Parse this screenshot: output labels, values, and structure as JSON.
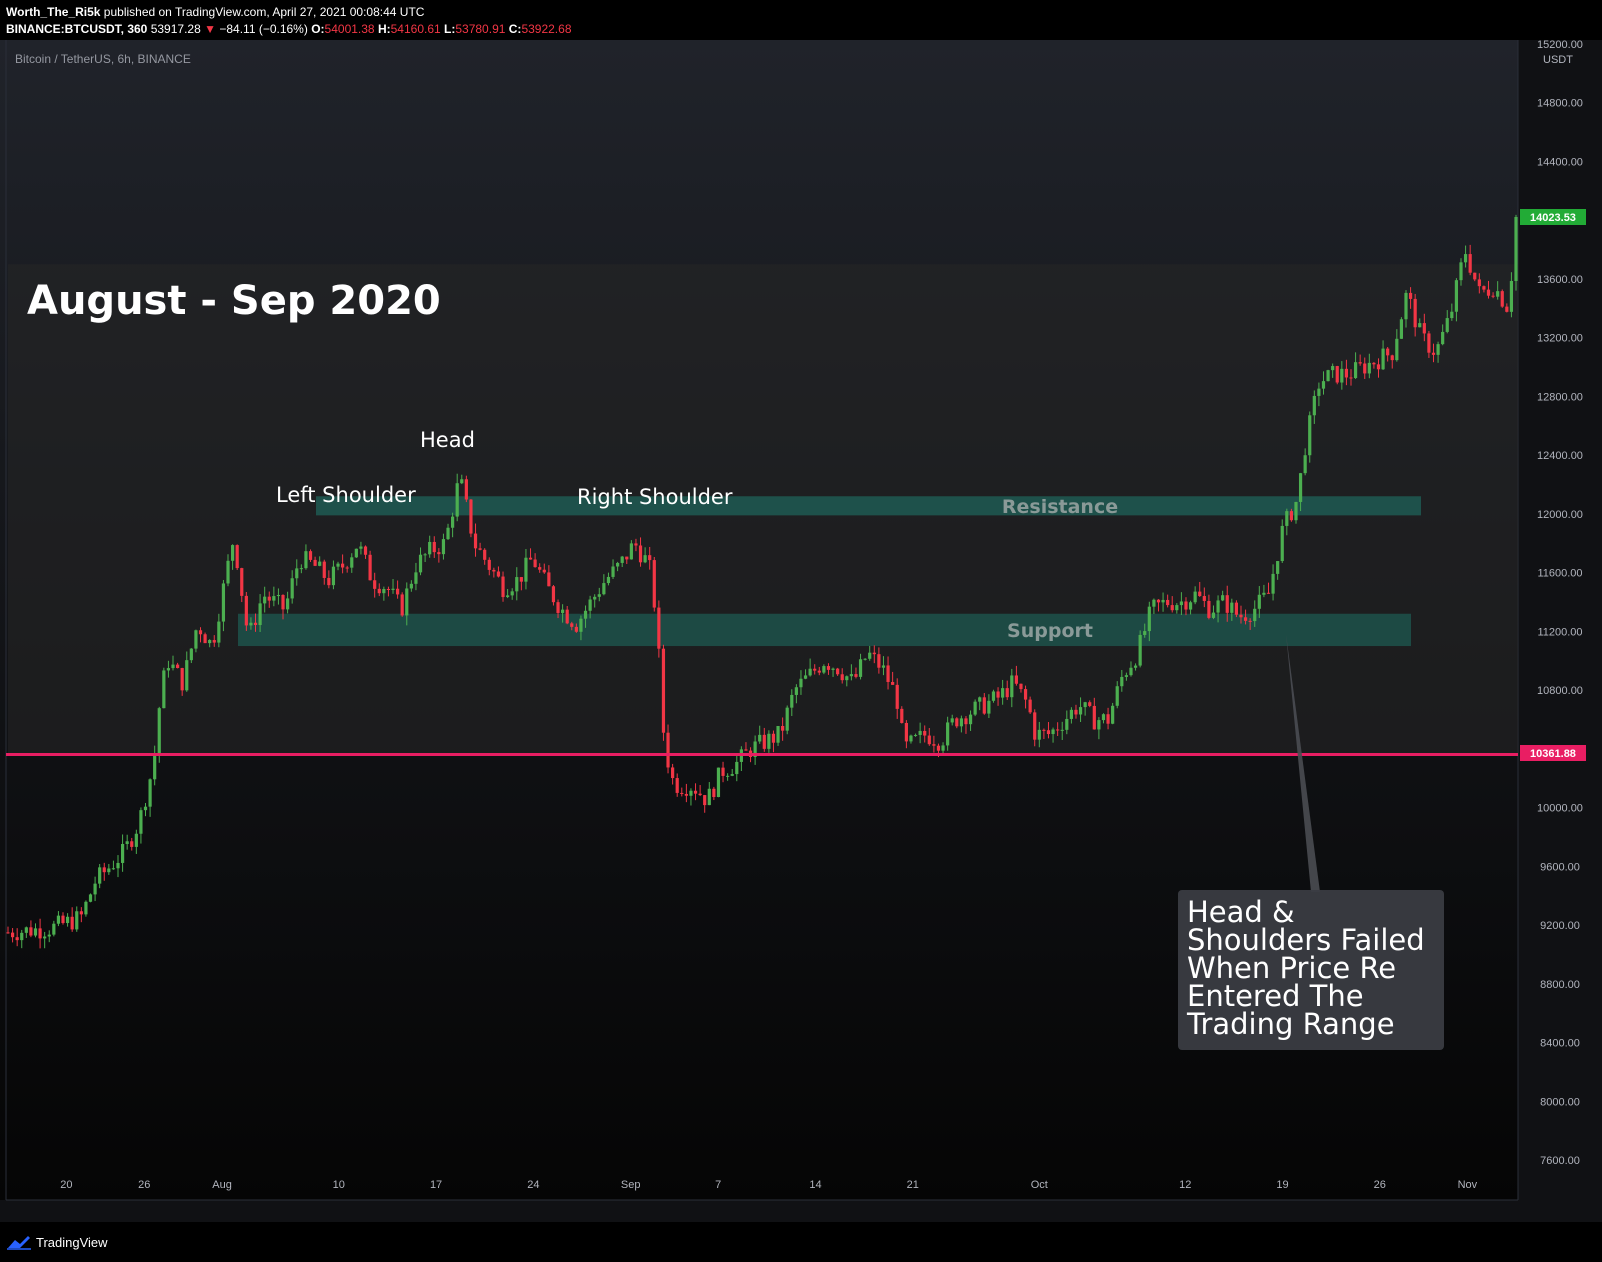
{
  "header": {
    "author": "Worth_The_Ri5k",
    "published_text": " published on TradingView.com, April 27, 2021 00:08:44 UTC",
    "symbol_line": "BINANCE:BTCUSDT, 360",
    "last": "53917.28",
    "change": "−84.11 (−0.16%)",
    "o_label": "O:",
    "o": "54001.38",
    "h_label": "H:",
    "h": "54160.61",
    "l_label": "L:",
    "l": "53780.91",
    "c_label": "C:",
    "c": "53922.68"
  },
  "chart_header": "Bitcoin / TetherUS, 6h, BINANCE",
  "footer": {
    "brand": "TradingView"
  },
  "colors": {
    "up": "#26a69a",
    "down": "#f23645",
    "candle_up": "#4caf50",
    "candle_down": "#f23645",
    "zone": "#1e5a52",
    "level_line": "#e91e63",
    "last_price_bg": "#22ab36",
    "bg_top": "#1e2128",
    "bg_bottom": "#050505"
  },
  "chart_data": {
    "type": "candlestick",
    "title": "August - Sep 2020",
    "price_unit": "USDT",
    "ylim": [
      7600,
      15200
    ],
    "y_ticks": [
      "15200.00",
      "14800.00",
      "14400.00",
      "14000.00",
      "13600.00",
      "13200.00",
      "12800.00",
      "12400.00",
      "12000.00",
      "11600.00",
      "11200.00",
      "10800.00",
      "10400.00",
      "10000.00",
      "9600.00",
      "9200.00",
      "8800.00",
      "8400.00",
      "8000.00",
      "7600.00"
    ],
    "x_ticks": [
      "20",
      "26",
      "Aug",
      "10",
      "17",
      "24",
      "Sep",
      "7",
      "14",
      "21",
      "Oct",
      "12",
      "19",
      "26",
      "Nov"
    ],
    "price_path": [
      [
        0,
        9150
      ],
      [
        6,
        9180
      ],
      [
        10,
        9250
      ],
      [
        12,
        9500
      ],
      [
        16,
        9700
      ],
      [
        18,
        9900
      ],
      [
        20,
        10300
      ],
      [
        21,
        10800
      ],
      [
        22,
        11000
      ],
      [
        24,
        10850
      ],
      [
        26,
        11250
      ],
      [
        28,
        11100
      ],
      [
        30,
        11600
      ],
      [
        31,
        11850
      ],
      [
        33,
        11150
      ],
      [
        35,
        11450
      ],
      [
        38,
        11350
      ],
      [
        40,
        11700
      ],
      [
        42,
        11650
      ],
      [
        44,
        11550
      ],
      [
        46,
        11650
      ],
      [
        48,
        11800
      ],
      [
        50,
        11550
      ],
      [
        52,
        11500
      ],
      [
        54,
        11350
      ],
      [
        56,
        11650
      ],
      [
        58,
        11750
      ],
      [
        60,
        11800
      ],
      [
        62,
        12250
      ],
      [
        64,
        11800
      ],
      [
        66,
        11650
      ],
      [
        68,
        11500
      ],
      [
        70,
        11550
      ],
      [
        72,
        11700
      ],
      [
        74,
        11500
      ],
      [
        76,
        11350
      ],
      [
        78,
        11250
      ],
      [
        80,
        11400
      ],
      [
        82,
        11550
      ],
      [
        84,
        11650
      ],
      [
        86,
        11800
      ],
      [
        88,
        11650
      ],
      [
        89,
        11300
      ],
      [
        90,
        10500
      ],
      [
        91,
        10200
      ],
      [
        92,
        10150
      ],
      [
        94,
        10150
      ],
      [
        96,
        10050
      ],
      [
        98,
        10250
      ],
      [
        100,
        10300
      ],
      [
        102,
        10400
      ],
      [
        104,
        10450
      ],
      [
        106,
        10500
      ],
      [
        108,
        10800
      ],
      [
        110,
        10900
      ],
      [
        112,
        11000
      ],
      [
        114,
        10950
      ],
      [
        116,
        10850
      ],
      [
        118,
        11050
      ],
      [
        120,
        10950
      ],
      [
        122,
        10750
      ],
      [
        123,
        10400
      ],
      [
        126,
        10500
      ],
      [
        128,
        10450
      ],
      [
        130,
        10600
      ],
      [
        132,
        10650
      ],
      [
        134,
        10700
      ],
      [
        136,
        10750
      ],
      [
        138,
        10850
      ],
      [
        140,
        10700
      ],
      [
        141,
        10500
      ],
      [
        143,
        10500
      ],
      [
        145,
        10600
      ],
      [
        147,
        10700
      ],
      [
        149,
        10600
      ],
      [
        151,
        10600
      ],
      [
        153,
        10900
      ],
      [
        155,
        11050
      ],
      [
        157,
        11350
      ],
      [
        159,
        11400
      ],
      [
        161,
        11400
      ],
      [
        163,
        11450
      ],
      [
        165,
        11350
      ],
      [
        167,
        11400
      ],
      [
        169,
        11300
      ],
      [
        171,
        11350
      ],
      [
        173,
        11450
      ],
      [
        175,
        11900
      ],
      [
        177,
        12100
      ],
      [
        178,
        12450
      ],
      [
        180,
        12900
      ],
      [
        182,
        12950
      ],
      [
        184,
        12950
      ],
      [
        186,
        13000
      ],
      [
        188,
        13050
      ],
      [
        190,
        13100
      ],
      [
        192,
        13500
      ],
      [
        194,
        13200
      ],
      [
        196,
        13100
      ],
      [
        198,
        13350
      ],
      [
        200,
        13800
      ],
      [
        202,
        13500
      ],
      [
        204,
        13550
      ],
      [
        206,
        13400
      ],
      [
        207,
        14020
      ]
    ],
    "levels": [
      {
        "name": "Resistance",
        "low": 11990,
        "high": 12120
      },
      {
        "name": "Support",
        "low": 11100,
        "high": 11320
      },
      {
        "name": "Trading range",
        "low": 10361.88,
        "high": 13700
      }
    ],
    "last_price": "14023.53",
    "horizontal_line_price": "10361.88",
    "annotations": {
      "head": "Head",
      "left_shoulder": "Left Shoulder",
      "right_shoulder": "Right Shoulder",
      "resistance": "Resistance",
      "support": "Support",
      "callout": [
        "Head &",
        "Shoulders Failed",
        "When Price Re",
        "Entered The",
        "Trading Range"
      ]
    }
  }
}
